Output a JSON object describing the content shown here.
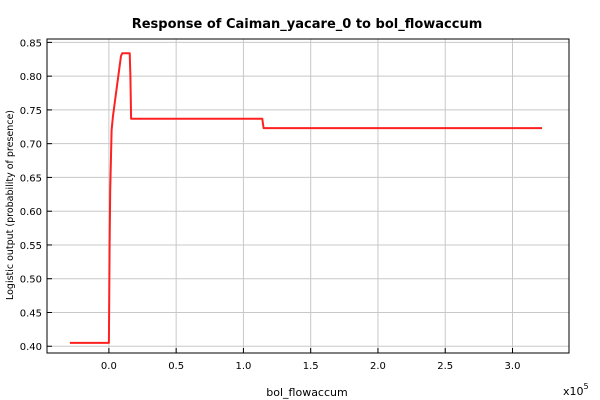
{
  "chart_data": {
    "type": "line",
    "title": "Response of Caiman_yacare_0 to bol_flowaccum",
    "xlabel": "bol_flowaccum",
    "ylabel": "Logistic output (probability of presence)",
    "x_multiplier_label": "x10",
    "x_multiplier_exponent": "5",
    "xlim": [
      -0.46,
      3.42
    ],
    "ylim": [
      0.39,
      0.855
    ],
    "x_ticks": [
      0,
      0.5,
      1,
      1.5,
      2,
      2.5,
      3
    ],
    "x_tick_labels": [
      "0.0",
      "0.5",
      "1.0",
      "1.5",
      "2.0",
      "2.5",
      "3.0"
    ],
    "y_ticks": [
      0.4,
      0.45,
      0.5,
      0.55,
      0.6,
      0.65,
      0.7,
      0.75,
      0.8,
      0.85
    ],
    "y_tick_labels": [
      "0.40",
      "0.45",
      "0.50",
      "0.55",
      "0.60",
      "0.65",
      "0.70",
      "0.75",
      "0.80",
      "0.85"
    ],
    "grid": true,
    "series": [
      {
        "color": "#ff2020",
        "x": [
          -0.29,
          0.0,
          0.005,
          0.01,
          0.02,
          0.03,
          0.05,
          0.07,
          0.09,
          0.1,
          0.155,
          0.16,
          0.165,
          1.14,
          1.145,
          1.15,
          3.22
        ],
        "y": [
          0.405,
          0.405,
          0.55,
          0.63,
          0.72,
          0.74,
          0.77,
          0.8,
          0.83,
          0.834,
          0.834,
          0.8,
          0.737,
          0.737,
          0.73,
          0.723,
          0.723
        ]
      }
    ]
  }
}
